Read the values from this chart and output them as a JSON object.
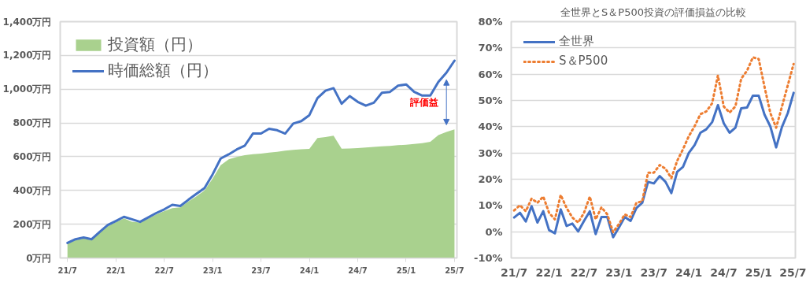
{
  "chart_data": [
    {
      "type": "area",
      "legend": "top left",
      "grid": "y",
      "marker": "none",
      "annotations": [
        "評価益"
      ],
      "categories": [
        "21/7",
        null,
        null,
        null,
        null,
        null,
        "22/1",
        null,
        null,
        null,
        null,
        null,
        "22/7",
        null,
        null,
        null,
        null,
        null,
        "23/1",
        null,
        null,
        null,
        null,
        null,
        "23/7",
        null,
        null,
        null,
        null,
        null,
        "24/1",
        null,
        null,
        null,
        null,
        null,
        "24/7",
        null,
        null,
        null,
        null,
        null,
        "25/1",
        null,
        null,
        null,
        null,
        null,
        "25/7"
      ],
      "ylim": [
        0,
        1400
      ],
      "yticks": [
        {
          "value": 0,
          "label": "0万円"
        },
        {
          "value": 200,
          "label": "200万円"
        },
        {
          "value": 400,
          "label": "400万円"
        },
        {
          "value": 600,
          "label": "600万円"
        },
        {
          "value": 800,
          "label": "800万円"
        },
        {
          "value": 1000,
          "label": "1,000万円"
        },
        {
          "value": 1200,
          "label": "1,200万円"
        },
        {
          "value": 1400,
          "label": "1,400万円"
        }
      ],
      "series": [
        {
          "name": "投資額（円）",
          "type": "area",
          "color": "#a9d18e",
          "values": [
            85,
            105,
            115,
            105,
            150,
            188,
            212,
            235,
            215,
            210,
            232,
            258,
            278,
            295,
            300,
            335,
            365,
            400,
            470,
            550,
            585,
            598,
            609,
            615,
            618,
            624,
            629,
            636,
            641,
            644,
            646,
            710,
            716,
            725,
            648,
            649,
            651,
            654,
            658,
            661,
            664,
            668,
            671,
            676,
            680,
            688,
            728,
            747,
            762
          ]
        },
        {
          "name": "時価総額（円）",
          "type": "line",
          "color": "#4472c4",
          "line_style": "solid",
          "values": [
            89,
            111,
            121,
            111,
            155,
            195,
            219,
            244,
            229,
            214,
            240,
            266,
            288,
            315,
            308,
            345,
            380,
            414,
            495,
            589,
            614,
            643,
            666,
            737,
            737,
            765,
            757,
            737,
            796,
            811,
            846,
            947,
            991,
            1006,
            914,
            959,
            925,
            902,
            920,
            979,
            984,
            1021,
            1028,
            984,
            962,
            962,
            1043,
            1098,
            1169
          ]
        }
      ]
    },
    {
      "type": "line",
      "title": "全世界とS＆P500投資の評価損益の比較",
      "legend": "top left",
      "grid": "y",
      "marker": "none",
      "categories": [
        "21/7",
        null,
        null,
        null,
        null,
        null,
        "22/1",
        null,
        null,
        null,
        null,
        null,
        "22/7",
        null,
        null,
        null,
        null,
        null,
        "23/1",
        null,
        null,
        null,
        null,
        null,
        "23/7",
        null,
        null,
        null,
        null,
        null,
        "24/1",
        null,
        null,
        null,
        null,
        null,
        "24/7",
        null,
        null,
        null,
        null,
        null,
        "25/1",
        null,
        null,
        null,
        null,
        null,
        "25/7"
      ],
      "ylim": [
        -10,
        80
      ],
      "yticks": [
        {
          "value": -10,
          "label": "-10%"
        },
        {
          "value": 0,
          "label": "0%"
        },
        {
          "value": 10,
          "label": "10%"
        },
        {
          "value": 20,
          "label": "20%"
        },
        {
          "value": 30,
          "label": "30%"
        },
        {
          "value": 40,
          "label": "40%"
        },
        {
          "value": 50,
          "label": "50%"
        },
        {
          "value": 60,
          "label": "60%"
        },
        {
          "value": 70,
          "label": "70%"
        },
        {
          "value": 80,
          "label": "80%"
        }
      ],
      "series": [
        {
          "name": "全世界",
          "color": "#4472c4",
          "line_style": "solid",
          "values": [
            5.4,
            7.2,
            3.9,
            9.7,
            3.5,
            7.8,
            0.6,
            -0.6,
            8.5,
            2.2,
            3.1,
            0.1,
            4.1,
            7.8,
            -0.9,
            5.6,
            5.6,
            -2.1,
            1.6,
            5.6,
            4.1,
            9,
            11,
            19,
            18.4,
            21.2,
            19,
            14.7,
            22.8,
            24.7,
            30,
            33,
            37.7,
            39,
            41.7,
            48.2,
            41.3,
            37.7,
            39.6,
            47,
            47.3,
            51.8,
            51.8,
            44.6,
            40.1,
            32.1,
            39.9,
            45.2,
            52.9
          ]
        },
        {
          "name": "S＆P500",
          "color": "#ed7d31",
          "line_style": "dotted",
          "values": [
            8.1,
            10.1,
            7.8,
            12.6,
            11,
            13.4,
            7.2,
            4.7,
            14,
            9.1,
            5.4,
            3.5,
            7.2,
            13.4,
            4.7,
            9.3,
            6.6,
            -0.2,
            2.9,
            6.6,
            5.6,
            11,
            11.6,
            22.5,
            22.5,
            25.4,
            24,
            20.4,
            27,
            31.4,
            36.4,
            40.2,
            44.8,
            45.8,
            48.9,
            59.5,
            47.7,
            45.4,
            47.7,
            58.3,
            61.3,
            66.4,
            65.8,
            55.2,
            45.2,
            39.6,
            47.7,
            55.8,
            63.9
          ]
        }
      ]
    }
  ]
}
